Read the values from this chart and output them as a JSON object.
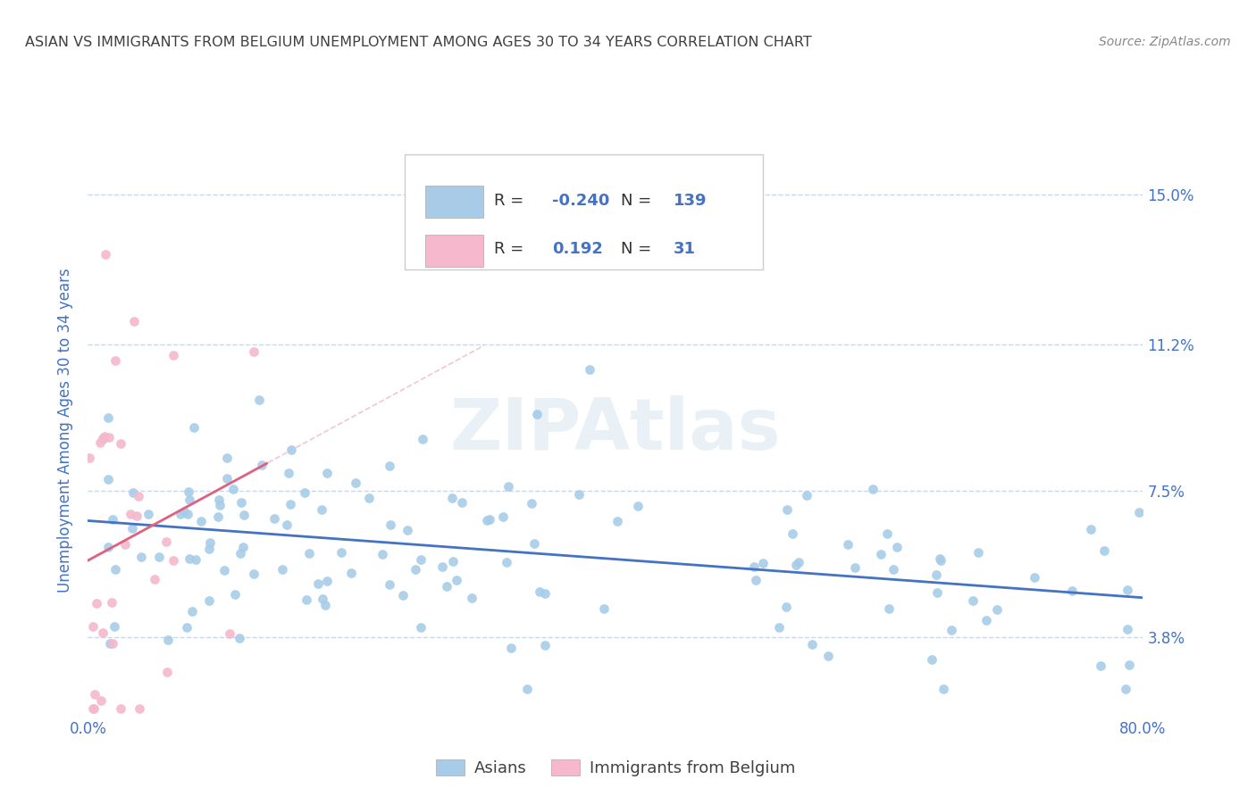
{
  "title": "ASIAN VS IMMIGRANTS FROM BELGIUM UNEMPLOYMENT AMONG AGES 30 TO 34 YEARS CORRELATION CHART",
  "source": "Source: ZipAtlas.com",
  "ylabel": "Unemployment Among Ages 30 to 34 years",
  "xlim": [
    0.0,
    0.8
  ],
  "ylim": [
    0.018,
    0.163
  ],
  "xticks": [
    0.0,
    0.1,
    0.2,
    0.3,
    0.4,
    0.5,
    0.6,
    0.7,
    0.8
  ],
  "xtick_labels": [
    "0.0%",
    "",
    "",
    "",
    "",
    "",
    "",
    "",
    "80.0%"
  ],
  "yticks": [
    0.038,
    0.075,
    0.112,
    0.15
  ],
  "ytick_labels": [
    "3.8%",
    "7.5%",
    "11.2%",
    "15.0%"
  ],
  "watermark": "ZIPAtlas",
  "blue_color": "#a8cce8",
  "pink_color": "#f5b8cc",
  "trend_blue_color": "#4472c4",
  "trend_pink_color": "#e06080",
  "trend_pink_dashed_color": "#e8a0b0",
  "grid_color": "#c8d8e8",
  "title_color": "#404040",
  "axis_label_color": "#4472c4",
  "tick_label_color": "#4472c4",
  "background_color": "#ffffff",
  "R_blue": -0.24,
  "N_blue": 139,
  "R_pink": 0.192,
  "N_pink": 31,
  "legend_blue_color": "#a8cce8",
  "legend_pink_color": "#f5b8cc",
  "legend_box_color": "#e8eef8"
}
